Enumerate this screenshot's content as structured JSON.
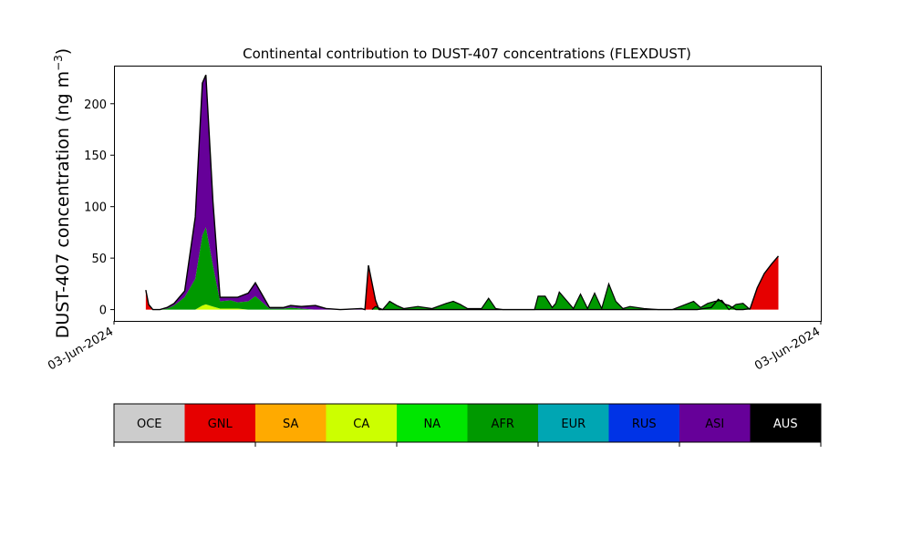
{
  "chart_data": {
    "type": "area",
    "stacked": true,
    "title": "Continental contribution to DUST-407 concentrations (FLEXDUST)",
    "ylabel": "DUST-407 concentration (ng m⁻³)",
    "ylabel_main": "DUST-407 concentration (ng m",
    "ylabel_sup": "−3",
    "ylabel_close": ")",
    "xlabel": "",
    "xlim": [
      0,
      100
    ],
    "ylim": [
      -11,
      237
    ],
    "yticks": [
      0,
      50,
      100,
      150,
      200
    ],
    "xtick_labels": [
      {
        "x": 0,
        "label": "03-Jun-2024"
      },
      {
        "x": 100,
        "label": "03-Jun-2024"
      }
    ],
    "grid": false,
    "x": [
      4.5,
      4.9,
      5.5,
      6.5,
      7.5,
      8.5,
      10.0,
      11.5,
      12.5,
      13.0,
      14.0,
      15.0,
      16.5,
      17.5,
      19.0,
      20.0,
      21.0,
      22.0,
      23.0,
      24.0,
      25.0,
      26.5,
      28.5,
      30.0,
      32.0,
      35.0,
      37.5,
      40.0,
      43.0,
      35.5,
      36.0,
      37.0,
      38.5,
      39.0,
      39.5,
      40.0,
      41.0,
      42.0,
      43.0,
      45.0,
      47.0,
      49.0,
      50.0,
      51.0,
      52.0,
      53.5,
      55.0,
      57.0,
      58.0,
      59.5,
      61.0,
      62.0,
      63.0,
      64.0,
      65.0,
      65.5,
      66.0,
      67.0,
      68.0,
      69.0,
      70.0,
      71.0,
      72.0,
      73.0,
      76.0,
      78.0,
      80.5,
      82.5,
      84.5,
      85.5,
      86.5,
      87.0,
      87.5,
      88.0,
      89.0,
      90.0,
      91.0,
      92.0,
      93.0,
      94.0
    ],
    "series": [
      {
        "name": "OCE",
        "color": "#cccccc",
        "values": [
          0,
          0,
          0,
          0,
          0,
          0,
          0,
          0,
          0,
          0,
          0,
          0,
          0,
          0,
          0,
          0,
          0,
          0,
          0,
          0,
          0,
          0,
          0,
          0,
          0,
          0,
          0,
          0,
          0,
          0,
          0,
          0,
          0,
          0,
          0,
          0,
          0,
          0,
          0,
          0,
          0,
          0,
          0,
          0,
          0,
          0,
          0,
          0,
          0,
          0,
          0,
          0,
          0,
          0,
          0,
          0,
          0,
          0,
          0,
          0,
          0,
          0,
          0,
          0,
          0,
          0,
          0,
          0,
          0,
          0,
          0,
          0,
          0,
          0,
          0,
          0,
          0,
          0,
          0,
          0
        ]
      },
      {
        "name": "GNL",
        "color": "#e60000",
        "values": [
          19,
          4,
          0,
          0,
          0,
          0,
          0,
          0,
          0,
          0,
          0,
          0,
          0,
          0,
          0,
          0,
          0,
          0,
          0,
          0,
          0,
          0,
          0,
          0,
          0,
          0,
          0,
          0,
          0,
          0,
          43,
          9,
          0,
          0,
          0,
          0,
          0,
          0,
          0,
          0,
          0,
          0,
          0,
          0,
          0,
          0,
          0,
          0,
          0,
          0,
          0,
          0,
          0,
          0,
          0,
          0,
          0,
          0,
          0,
          0,
          0,
          0,
          0,
          0,
          0,
          0,
          0,
          0,
          0,
          0,
          0,
          0,
          0,
          0,
          0,
          0,
          21,
          35,
          44,
          52
        ]
      },
      {
        "name": "SA",
        "color": "#ffaa00",
        "values": [
          0,
          0,
          0,
          0,
          0,
          0,
          0,
          0,
          0,
          0,
          0,
          0,
          0,
          0,
          0,
          0,
          0,
          0,
          0,
          0,
          0,
          0,
          0,
          0,
          0,
          0,
          0,
          0,
          0,
          0,
          0,
          0,
          0,
          0,
          0,
          0,
          0,
          0,
          0,
          0,
          0,
          0,
          0,
          0,
          0,
          0,
          0,
          0,
          0,
          0,
          0,
          0,
          0,
          0,
          0,
          0,
          0,
          0,
          0,
          0,
          0,
          0,
          0,
          0,
          0,
          0,
          0,
          0,
          0,
          0,
          0,
          0,
          0,
          0,
          0,
          0,
          0,
          0,
          0,
          0
        ]
      },
      {
        "name": "CA",
        "color": "#ccff00",
        "values": [
          0,
          0,
          0,
          0,
          0,
          0,
          0,
          0,
          4,
          5,
          3,
          1,
          1,
          1,
          0,
          0,
          0,
          0,
          0,
          0,
          0,
          0,
          0,
          0,
          0,
          0,
          0,
          0,
          0,
          0,
          0,
          0,
          0,
          0,
          0,
          0,
          0,
          0,
          0,
          0,
          0,
          0,
          0,
          0,
          0,
          0,
          0,
          0,
          0,
          0,
          0,
          0,
          0,
          0,
          0,
          0,
          0,
          0,
          0,
          0,
          0,
          0,
          0,
          0,
          0,
          0,
          0,
          0,
          0,
          9,
          2,
          1,
          0,
          0,
          0,
          0,
          0,
          0,
          0,
          0
        ]
      },
      {
        "name": "NA",
        "color": "#00e600",
        "values": [
          0,
          0,
          0,
          0,
          0,
          0,
          0,
          0,
          0,
          0,
          0,
          0,
          0,
          0,
          0,
          0,
          0,
          0,
          0,
          0,
          0,
          0,
          0,
          0,
          0,
          0,
          0,
          0,
          0,
          0,
          0,
          0,
          0,
          0,
          0,
          0,
          0,
          0,
          0,
          0,
          0,
          0,
          0,
          0,
          0,
          0,
          0,
          0,
          0,
          0,
          0,
          0,
          0,
          0,
          0,
          0,
          0,
          0,
          0,
          0,
          0,
          0,
          0,
          0,
          0,
          0,
          0,
          0,
          2,
          1,
          3,
          3,
          2,
          0,
          0,
          1,
          0,
          0,
          0,
          0
        ]
      },
      {
        "name": "AFR",
        "color": "#009900",
        "values": [
          0,
          1,
          0,
          0,
          1,
          4,
          12,
          30,
          68,
          75,
          40,
          7,
          8,
          6,
          8,
          13,
          7,
          1,
          1,
          1,
          2,
          1,
          0,
          0,
          0,
          0,
          0,
          0,
          0,
          0,
          0,
          0,
          0,
          0,
          0,
          0,
          0,
          0,
          0,
          0,
          0,
          0,
          0,
          0,
          0,
          0,
          0,
          0,
          0,
          0,
          0,
          0,
          0,
          0,
          0,
          0,
          0,
          0,
          0,
          0,
          0,
          0,
          0,
          0,
          0,
          0,
          0,
          0,
          0,
          0,
          0,
          0,
          0,
          0,
          0,
          0,
          0,
          0,
          0,
          0
        ]
      },
      {
        "name": "EUR",
        "color": "#00a6b3",
        "values": [
          0,
          0,
          0,
          0,
          0,
          0,
          0,
          0,
          0,
          0,
          0,
          0,
          0,
          0,
          0,
          0,
          0,
          0,
          0,
          0,
          0,
          0,
          0,
          0,
          0,
          0,
          0,
          0,
          0,
          0,
          0,
          0,
          0,
          0,
          0,
          0,
          0,
          0,
          0,
          0,
          0,
          0,
          0,
          0,
          0,
          0,
          0,
          0,
          0,
          0,
          0,
          0,
          0,
          0,
          0,
          0,
          0,
          0,
          0,
          0,
          0,
          0,
          0,
          0,
          0,
          0,
          0,
          0,
          0,
          0,
          0,
          0,
          0,
          0,
          0,
          0,
          0,
          0,
          0,
          0
        ]
      },
      {
        "name": "RUS",
        "color": "#0033e6",
        "values": [
          0,
          0,
          0,
          0,
          0,
          0,
          0,
          0,
          0,
          0,
          0,
          0,
          0,
          0,
          0,
          0,
          0,
          0,
          0,
          0,
          0,
          0,
          0,
          0,
          0,
          0,
          0,
          0,
          0,
          0,
          0,
          0,
          0,
          0,
          0,
          0,
          0,
          0,
          0,
          0,
          0,
          0,
          0,
          0,
          0,
          0,
          0,
          0,
          0,
          0,
          0,
          0,
          0,
          0,
          0,
          0,
          0,
          0,
          0,
          0,
          0,
          0,
          0,
          0,
          0,
          0,
          0,
          0,
          0,
          0,
          0,
          0,
          0,
          0,
          0,
          0,
          0,
          0,
          0,
          0
        ]
      },
      {
        "name": "ASI",
        "color": "#660099",
        "values": [
          0,
          0,
          0,
          0,
          1,
          2,
          6,
          60,
          148,
          148,
          62,
          4,
          3,
          5,
          8,
          13,
          7,
          1,
          1,
          1,
          2,
          2,
          4,
          1,
          0,
          1,
          0,
          0,
          0,
          0,
          0,
          0,
          0,
          0,
          0,
          0,
          0,
          0,
          0,
          0,
          0,
          0,
          0,
          0,
          0,
          0,
          0,
          0,
          0,
          0,
          0,
          0,
          0,
          0,
          0,
          0,
          0,
          0,
          0,
          0,
          0,
          0,
          0,
          0,
          0,
          0,
          0,
          0,
          0,
          0,
          0,
          0,
          0,
          0,
          0,
          0,
          0,
          0,
          0,
          0
        ]
      },
      {
        "name": "AUS",
        "color": "#000000",
        "values": [
          0,
          0,
          0,
          0,
          0,
          0,
          0,
          0,
          0,
          0,
          0,
          0,
          0,
          0,
          0,
          0,
          0,
          0,
          0,
          0,
          0,
          0,
          0,
          0,
          0,
          0,
          0,
          0,
          0,
          0,
          0,
          0,
          0,
          0,
          0,
          0,
          0,
          0,
          0,
          0,
          0,
          0,
          0,
          0,
          0,
          0,
          0,
          0,
          0,
          0,
          0,
          0,
          0,
          0,
          0,
          0,
          0,
          0,
          0,
          0,
          0,
          0,
          0,
          0,
          0,
          0,
          0,
          0,
          0,
          0,
          0,
          0,
          0,
          0,
          0,
          0,
          0,
          0,
          0,
          0
        ]
      }
    ],
    "afr_late": {
      "x": [
        36.5,
        37.0,
        38.0,
        39.0,
        40.0,
        41.0,
        42.0,
        43.0,
        45.0,
        47.0,
        48.0,
        49.0,
        50.0,
        52.0,
        53.0,
        54.0,
        55.0,
        57.0,
        59.5,
        60.0,
        61.0,
        62.0,
        62.5,
        63.0,
        64.0,
        65.0,
        66.0,
        67.0,
        68.0,
        69.0,
        70.0,
        71.0,
        72.0,
        73.0,
        75.0,
        77.0,
        79.0,
        80.5,
        82.0,
        83.0,
        84.0,
        85.0,
        86.0,
        87.0,
        88.0,
        89.0,
        90.0
      ],
      "values": [
        0,
        3,
        0,
        8,
        4,
        1,
        2,
        3,
        1,
        6,
        8,
        5,
        1,
        1,
        11,
        1,
        0,
        0,
        0,
        13,
        13,
        2,
        6,
        17,
        9,
        1,
        15,
        1,
        16,
        1,
        25,
        8,
        1,
        3,
        1,
        0,
        0,
        4,
        8,
        2,
        6,
        8,
        9,
        0,
        5,
        6,
        0
      ]
    }
  },
  "legend": {
    "entries": [
      "OCE",
      "GNL",
      "SA",
      "CA",
      "NA",
      "AFR",
      "EUR",
      "RUS",
      "ASI",
      "AUS"
    ],
    "colors": [
      "#cccccc",
      "#e60000",
      "#ffaa00",
      "#ccff00",
      "#00e600",
      "#009900",
      "#00a6b3",
      "#0033e6",
      "#660099",
      "#000000"
    ],
    "text_colors": [
      "#000000",
      "#000000",
      "#000000",
      "#000000",
      "#000000",
      "#000000",
      "#000000",
      "#000000",
      "#000000",
      "#ffffff"
    ]
  }
}
